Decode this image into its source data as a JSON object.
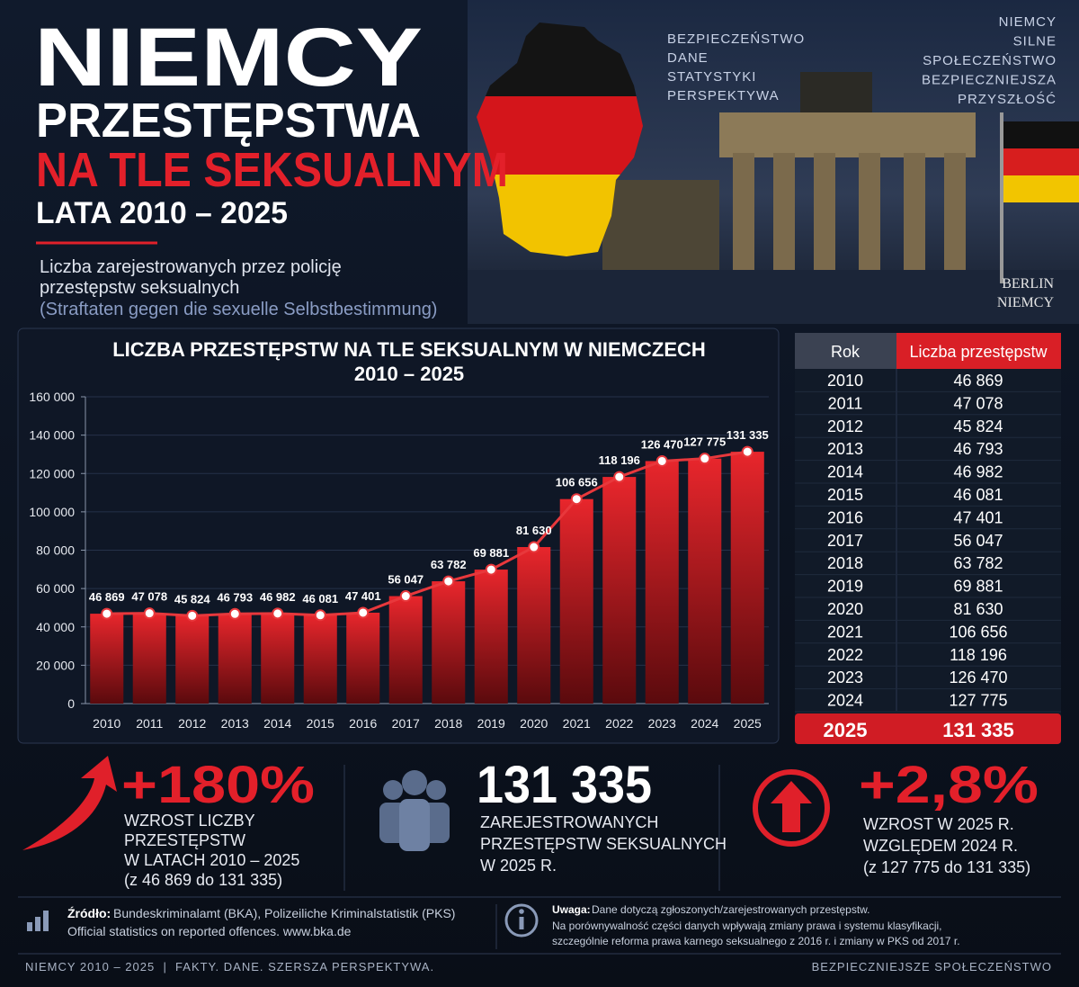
{
  "header": {
    "title": "NIEMCY",
    "subtitle1": "PRZESTĘPSTWA",
    "subtitle2": "NA TLE SEKSUALNYM",
    "years": "LATA 2010 – 2025",
    "description": [
      "Liczba zarejestrowanych przez policję",
      "przestępstw seksualnych"
    ],
    "description_de": "(Straftaten gegen die sexuelle Selbstbestimmung)",
    "tags_left": [
      "BEZPIECZEŃSTWO",
      "DANE",
      "STATYSTYKI",
      "PERSPEKTYWA"
    ],
    "tags_right": [
      "NIEMCY",
      "SILNE",
      "SPOŁECZEŃSTWO",
      "BEZPIECZNIEJSZA",
      "PRZYSZŁOŚĆ"
    ],
    "location": [
      "BERLIN",
      "NIEMCY"
    ]
  },
  "chart_data": {
    "type": "bar",
    "title": [
      "LICZBA PRZESTĘPSTW NA TLE SEKSUALNYM W NIEMCZECH",
      "2010 – 2025"
    ],
    "categories": [
      "2010",
      "2011",
      "2012",
      "2013",
      "2014",
      "2015",
      "2016",
      "2017",
      "2018",
      "2019",
      "2020",
      "2021",
      "2022",
      "2023",
      "2024",
      "2025"
    ],
    "values": [
      46869,
      47078,
      45824,
      46793,
      46982,
      46081,
      47401,
      56047,
      63782,
      69881,
      81630,
      106656,
      118196,
      126470,
      127775,
      131335
    ],
    "value_labels": [
      "46 869",
      "47 078",
      "45 824",
      "46 793",
      "46 982",
      "46 081",
      "47 401",
      "56 047",
      "63 782",
      "69 881",
      "81 630",
      "106 656",
      "118 196",
      "126 470",
      "127 775",
      "131 335"
    ],
    "color": "#d91f26",
    "line_color": "#e8383c",
    "ylim": [
      0,
      160000
    ],
    "yticks": [
      0,
      {
        "value": 20000,
        "label": "20 000"
      },
      {
        "value": 40000,
        "label": "40 000"
      },
      {
        "value": 60000,
        "label": "60 000"
      },
      {
        "value": 80000,
        "label": "80 000"
      },
      {
        "value": 100000,
        "label": "100 000"
      },
      {
        "value": 120000,
        "label": "120 000"
      },
      {
        "value": 140000,
        "label": "140 000"
      },
      {
        "value": 160000,
        "label": "160 000"
      }
    ],
    "grid": true
  },
  "table": {
    "header": [
      "Rok",
      "Liczba przestępstw"
    ],
    "rows": [
      [
        "2010",
        "46 869"
      ],
      [
        "2011",
        "47 078"
      ],
      [
        "2012",
        "45 824"
      ],
      [
        "2013",
        "46 793"
      ],
      [
        "2014",
        "46 982"
      ],
      [
        "2015",
        "46 081"
      ],
      [
        "2016",
        "47 401"
      ],
      [
        "2017",
        "56 047"
      ],
      [
        "2018",
        "63 782"
      ],
      [
        "2019",
        "69 881"
      ],
      [
        "2020",
        "81 630"
      ],
      [
        "2021",
        "106 656"
      ],
      [
        "2022",
        "118 196"
      ],
      [
        "2023",
        "126 470"
      ],
      [
        "2024",
        "127 775"
      ],
      [
        "2025",
        "131 335"
      ]
    ]
  },
  "stats": [
    {
      "value": "+180%",
      "lines": [
        "WZROST LICZBY",
        "PRZESTĘPSTW",
        "W LATACH 2010 – 2025",
        "(z 46 869 do 131 335)"
      ]
    },
    {
      "value": "131 335",
      "lines": [
        "ZAREJESTROWANYCH",
        "PRZESTĘPSTW SEKSUALNYCH",
        "W 2025 R."
      ]
    },
    {
      "value": "+2,8%",
      "lines": [
        "WZROST W 2025 R.",
        "WZGLĘDEM 2024 R.",
        "(z 127 775 do 131 335)"
      ]
    }
  ],
  "source": {
    "label": "Źródło:",
    "text": "Bundeskriminalamt (BKA), Polizeiliche Kriminalstatistik (PKS)",
    "line2": "Official statistics on reported offences. www.bka.de"
  },
  "note": {
    "label": "Uwaga:",
    "text": "Dane dotyczą zgłoszonych/zarejestrowanych przestępstw.",
    "lines": [
      "Na porównywalność części danych wpływają zmiany prawa i systemu klasyfikacji,",
      "szczególnie reforma prawa karnego seksualnego z 2016 r. i zmiany w PKS od 2017 r."
    ]
  },
  "footer": {
    "left": "NIEMCY 2010 – 2025  |  FAKTY. DANE. SZERSZA PERSPEKTYWA.",
    "right": "BEZPIECZNIEJSZE SPOŁECZEŃSTWO"
  }
}
